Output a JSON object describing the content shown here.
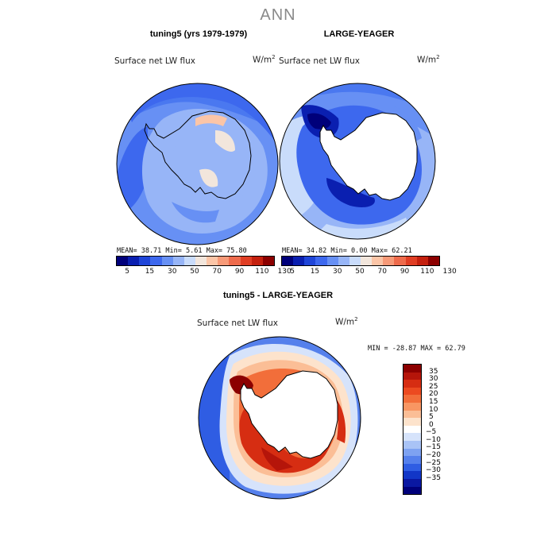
{
  "season": "ANN",
  "panels": [
    {
      "title": "tuning5 (yrs 1979-1979)",
      "variable": "Surface net LW flux",
      "units_base": "W/m",
      "units_exp": "2",
      "stats": "MEAN=  38.71  Min=   5.61  Max=  75.80"
    },
    {
      "title": "LARGE-YEAGER",
      "variable": "Surface net LW flux",
      "units_base": "W/m",
      "units_exp": "2",
      "stats": "MEAN=  34.82  Min=   0.00  Max=  62.21"
    },
    {
      "title": "tuning5 - LARGE-YEAGER",
      "variable": "Surface net LW flux",
      "units_base": "W/m",
      "units_exp": "2",
      "stats": "MIN = -28.87 MAX =  62.79"
    }
  ],
  "abs_colorbar": {
    "colors": [
      "#00007a",
      "#0a1fb0",
      "#1f45d8",
      "#3d68ee",
      "#6790f4",
      "#97b5f7",
      "#c9dcfb",
      "#f2e6dc",
      "#fbc5a7",
      "#f79a78",
      "#ee6b4c",
      "#e03e24",
      "#c4200e",
      "#8c0000"
    ],
    "ticks": [
      "5",
      "15",
      "30",
      "50",
      "70",
      "90",
      "110",
      "130"
    ]
  },
  "diff_colorbar": {
    "colors": [
      "#8c0000",
      "#b5150a",
      "#d62d12",
      "#ec4a20",
      "#f26e3a",
      "#f89663",
      "#fbbe96",
      "#fde3cc",
      "#ffffff",
      "#d6e3fb",
      "#a9c3f6",
      "#7ea2f1",
      "#5580ec",
      "#2f5de3",
      "#1236c7",
      "#0a18a2",
      "#00007a"
    ],
    "ticks": [
      "35",
      "30",
      "25",
      "20",
      "15",
      "10",
      "5",
      "0",
      "−5",
      "−10",
      "−15",
      "−20",
      "−25",
      "−30",
      "−35"
    ]
  }
}
